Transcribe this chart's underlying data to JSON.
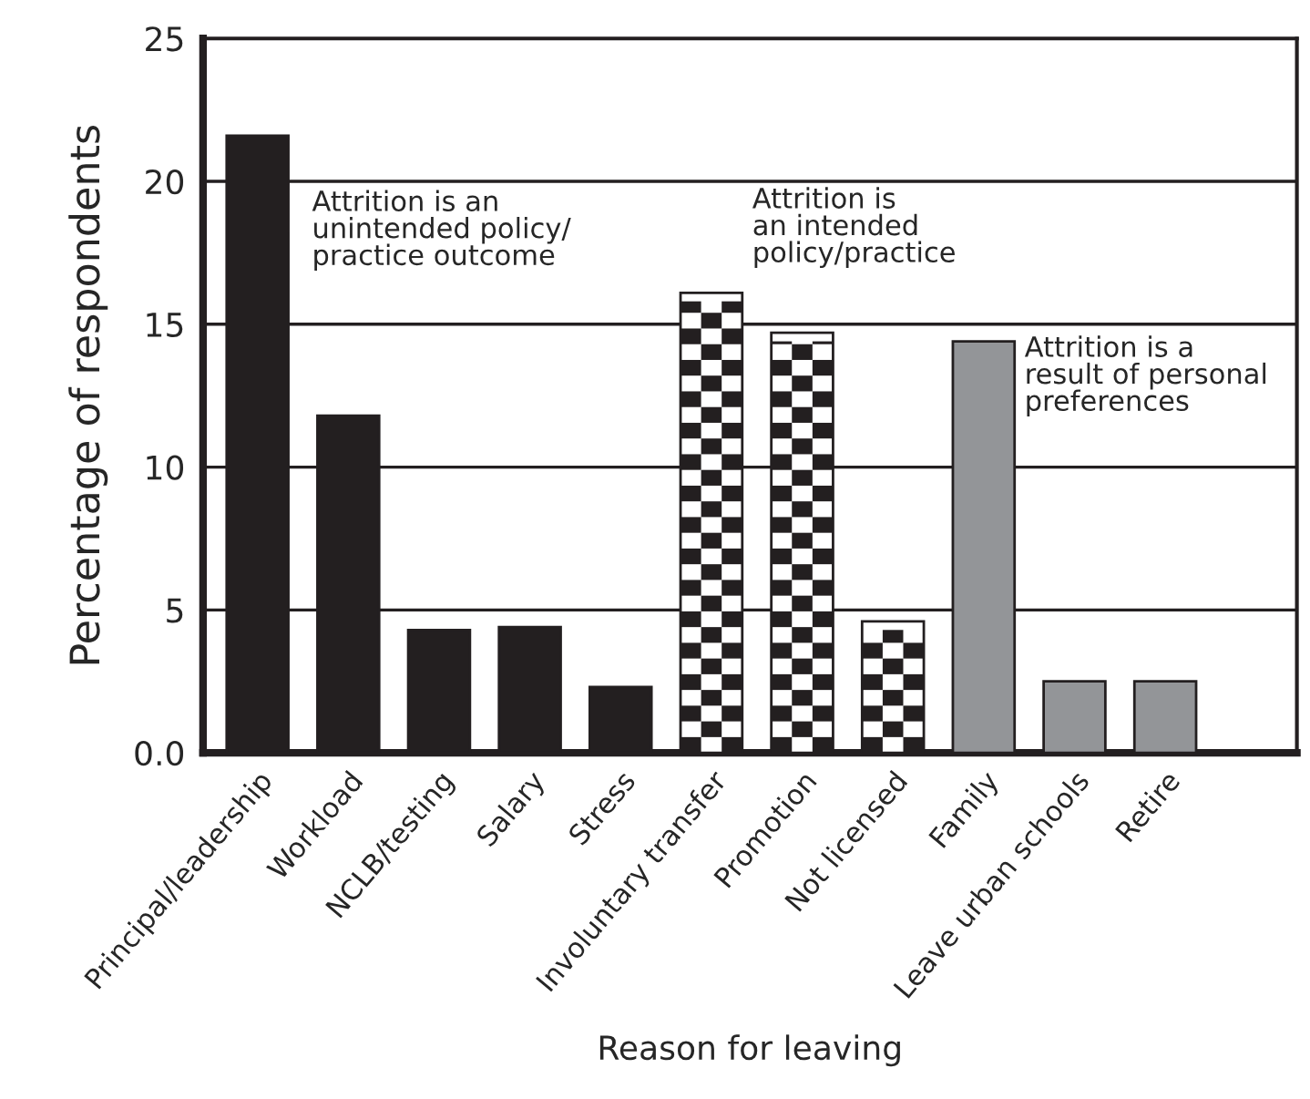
{
  "chart_data": {
    "type": "bar",
    "xlabel": "Reason for leaving",
    "ylabel": "Percentage of respondents",
    "categories": [
      "Principal/leadership",
      "Workload",
      "NCLB/testing",
      "Salary",
      "Stress",
      "Involuntary transfer",
      "Promotion",
      "Not licensed",
      "Family",
      "Leave urban schools",
      "Retire"
    ],
    "values": [
      21.6,
      11.8,
      4.3,
      4.4,
      2.3,
      16.1,
      14.7,
      4.6,
      14.4,
      2.5,
      2.5
    ],
    "colors": [
      "#231f20",
      "#231f20",
      "#231f20",
      "#231f20",
      "#231f20",
      "#ffffff",
      "#ffffff",
      "#ffffff",
      "#939598",
      "#939598",
      "#939598"
    ],
    "ylim": [
      0,
      25
    ],
    "yticks": [
      {
        "value": 0,
        "label": "0.0"
      },
      5,
      10,
      15,
      20,
      25
    ],
    "grid": "y",
    "annotations": [
      "Attrition is an\nunintended policy/\npractice outcome",
      "Attrition is\nan intended\npolicy/practice",
      "Attrition is a\nresult of personal\npreferences"
    ]
  }
}
